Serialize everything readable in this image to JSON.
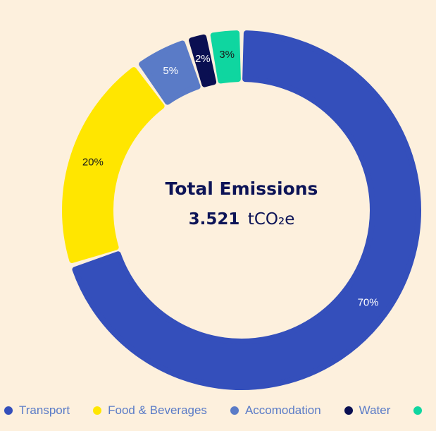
{
  "chart_data": {
    "type": "pie",
    "variant": "donut",
    "categories": [
      "Transport",
      "Food & Beverages",
      "Accomodation",
      "Water",
      ""
    ],
    "values": [
      70,
      20,
      5,
      2,
      3
    ],
    "data_labels": [
      "70%",
      "20%",
      "5%",
      "2%",
      "3%"
    ],
    "colors": [
      "#344fbb",
      "#ffe600",
      "#5a7bc7",
      "#0a0f52",
      "#0fd6a0"
    ],
    "label_colors": [
      "#ffffff",
      "#1a1a1a",
      "#ffffff",
      "#ffffff",
      "#1a1a1a"
    ],
    "legend_position": "bottom",
    "center": {
      "title": "Total Emissions",
      "value": "3.521",
      "unit": "tCO₂e"
    }
  }
}
